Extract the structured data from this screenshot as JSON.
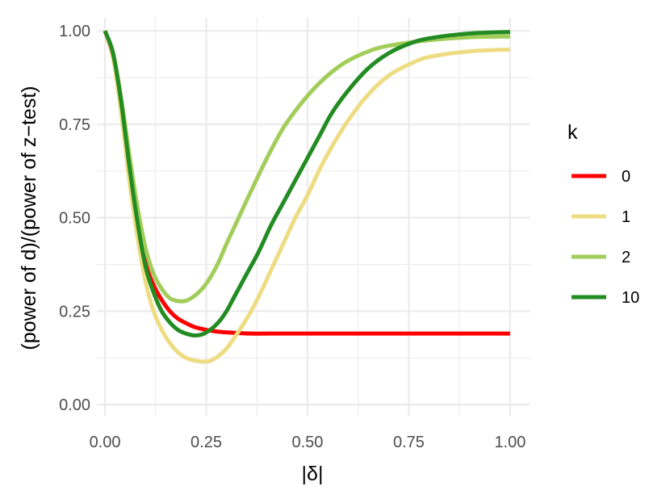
{
  "chart_data": {
    "type": "line",
    "xlabel": "|δ|",
    "ylabel": "(power of d)/(power of z−test)",
    "xlim": [
      -0.02,
      1.05
    ],
    "ylim": [
      -0.03,
      1.035
    ],
    "x_ticks": [
      0.0,
      0.25,
      0.5,
      0.75,
      1.0
    ],
    "x_tick_labels": [
      "0.00",
      "0.25",
      "0.50",
      "0.75",
      "1.00"
    ],
    "y_ticks": [
      0.0,
      0.25,
      0.5,
      0.75,
      1.0
    ],
    "y_tick_labels": [
      "0.00",
      "0.25",
      "0.50",
      "0.75",
      "1.00"
    ],
    "grid": true,
    "legend": {
      "title": "k",
      "position": "right"
    },
    "series": [
      {
        "name": "0",
        "color": "#ff0000",
        "points": [
          [
            0.0,
            1.0
          ],
          [
            0.02,
            0.93
          ],
          [
            0.04,
            0.8
          ],
          [
            0.06,
            0.65
          ],
          [
            0.08,
            0.5
          ],
          [
            0.1,
            0.38
          ],
          [
            0.12,
            0.32
          ],
          [
            0.14,
            0.28
          ],
          [
            0.16,
            0.25
          ],
          [
            0.18,
            0.23
          ],
          [
            0.2,
            0.218
          ],
          [
            0.22,
            0.208
          ],
          [
            0.25,
            0.2
          ],
          [
            0.28,
            0.195
          ],
          [
            0.32,
            0.192
          ],
          [
            0.36,
            0.19
          ],
          [
            0.4,
            0.19
          ],
          [
            0.5,
            0.19
          ],
          [
            0.6,
            0.19
          ],
          [
            0.7,
            0.19
          ],
          [
            0.8,
            0.19
          ],
          [
            0.9,
            0.19
          ],
          [
            1.0,
            0.19
          ]
        ]
      },
      {
        "name": "1",
        "color": "#eedc82",
        "points": [
          [
            0.0,
            1.0
          ],
          [
            0.02,
            0.93
          ],
          [
            0.04,
            0.78
          ],
          [
            0.06,
            0.6
          ],
          [
            0.08,
            0.45
          ],
          [
            0.1,
            0.33
          ],
          [
            0.12,
            0.25
          ],
          [
            0.14,
            0.2
          ],
          [
            0.16,
            0.165
          ],
          [
            0.18,
            0.14
          ],
          [
            0.2,
            0.125
          ],
          [
            0.22,
            0.118
          ],
          [
            0.24,
            0.115
          ],
          [
            0.26,
            0.117
          ],
          [
            0.28,
            0.13
          ],
          [
            0.3,
            0.15
          ],
          [
            0.32,
            0.18
          ],
          [
            0.35,
            0.23
          ],
          [
            0.38,
            0.29
          ],
          [
            0.41,
            0.36
          ],
          [
            0.44,
            0.43
          ],
          [
            0.47,
            0.5
          ],
          [
            0.5,
            0.56
          ],
          [
            0.53,
            0.63
          ],
          [
            0.56,
            0.69
          ],
          [
            0.6,
            0.76
          ],
          [
            0.65,
            0.83
          ],
          [
            0.7,
            0.88
          ],
          [
            0.75,
            0.91
          ],
          [
            0.8,
            0.93
          ],
          [
            0.9,
            0.945
          ],
          [
            1.0,
            0.95
          ]
        ]
      },
      {
        "name": "2",
        "color": "#a2cd5a",
        "points": [
          [
            0.0,
            1.0
          ],
          [
            0.02,
            0.94
          ],
          [
            0.04,
            0.82
          ],
          [
            0.06,
            0.67
          ],
          [
            0.08,
            0.53
          ],
          [
            0.1,
            0.42
          ],
          [
            0.12,
            0.35
          ],
          [
            0.14,
            0.31
          ],
          [
            0.16,
            0.285
          ],
          [
            0.18,
            0.277
          ],
          [
            0.2,
            0.278
          ],
          [
            0.22,
            0.29
          ],
          [
            0.24,
            0.31
          ],
          [
            0.26,
            0.34
          ],
          [
            0.28,
            0.38
          ],
          [
            0.3,
            0.43
          ],
          [
            0.33,
            0.5
          ],
          [
            0.36,
            0.57
          ],
          [
            0.4,
            0.66
          ],
          [
            0.44,
            0.74
          ],
          [
            0.48,
            0.8
          ],
          [
            0.52,
            0.85
          ],
          [
            0.56,
            0.89
          ],
          [
            0.6,
            0.92
          ],
          [
            0.65,
            0.945
          ],
          [
            0.7,
            0.96
          ],
          [
            0.8,
            0.975
          ],
          [
            0.9,
            0.983
          ],
          [
            1.0,
            0.985
          ]
        ]
      },
      {
        "name": "10",
        "color": "#228b22",
        "points": [
          [
            0.0,
            1.0
          ],
          [
            0.02,
            0.94
          ],
          [
            0.04,
            0.81
          ],
          [
            0.06,
            0.64
          ],
          [
            0.08,
            0.49
          ],
          [
            0.1,
            0.37
          ],
          [
            0.12,
            0.3
          ],
          [
            0.14,
            0.25
          ],
          [
            0.16,
            0.22
          ],
          [
            0.18,
            0.2
          ],
          [
            0.2,
            0.19
          ],
          [
            0.22,
            0.185
          ],
          [
            0.24,
            0.188
          ],
          [
            0.26,
            0.2
          ],
          [
            0.28,
            0.22
          ],
          [
            0.3,
            0.25
          ],
          [
            0.32,
            0.29
          ],
          [
            0.35,
            0.35
          ],
          [
            0.38,
            0.41
          ],
          [
            0.41,
            0.48
          ],
          [
            0.44,
            0.54
          ],
          [
            0.47,
            0.6
          ],
          [
            0.5,
            0.66
          ],
          [
            0.53,
            0.72
          ],
          [
            0.56,
            0.78
          ],
          [
            0.6,
            0.84
          ],
          [
            0.65,
            0.9
          ],
          [
            0.7,
            0.94
          ],
          [
            0.75,
            0.965
          ],
          [
            0.8,
            0.98
          ],
          [
            0.9,
            0.993
          ],
          [
            1.0,
            0.997
          ]
        ]
      }
    ]
  }
}
